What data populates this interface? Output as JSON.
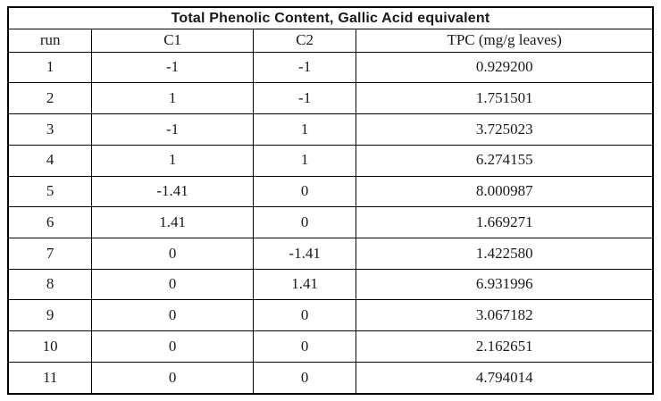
{
  "table": {
    "title": "Total Phenolic Content, Gallic Acid equivalent",
    "columns": [
      "run",
      "C1",
      "C2",
      "TPC (mg/g leaves)"
    ],
    "rows": [
      [
        "1",
        "-1",
        "-1",
        "0.929200"
      ],
      [
        "2",
        "1",
        "-1",
        "1.751501"
      ],
      [
        "3",
        "-1",
        "1",
        "3.725023"
      ],
      [
        "4",
        "1",
        "1",
        "6.274155"
      ],
      [
        "5",
        "-1.41",
        "0",
        "8.000987"
      ],
      [
        "6",
        "1.41",
        "0",
        "1.669271"
      ],
      [
        "7",
        "0",
        "-1.41",
        "1.422580"
      ],
      [
        "8",
        "0",
        "1.41",
        "6.931996"
      ],
      [
        "9",
        "0",
        "0",
        "3.067182"
      ],
      [
        "10",
        "0",
        "0",
        "2.162651"
      ],
      [
        "11",
        "0",
        "0",
        "4.794014"
      ]
    ],
    "colors": {
      "border": "#000000",
      "text": "#1a1a1a",
      "background": "#ffffff"
    }
  }
}
